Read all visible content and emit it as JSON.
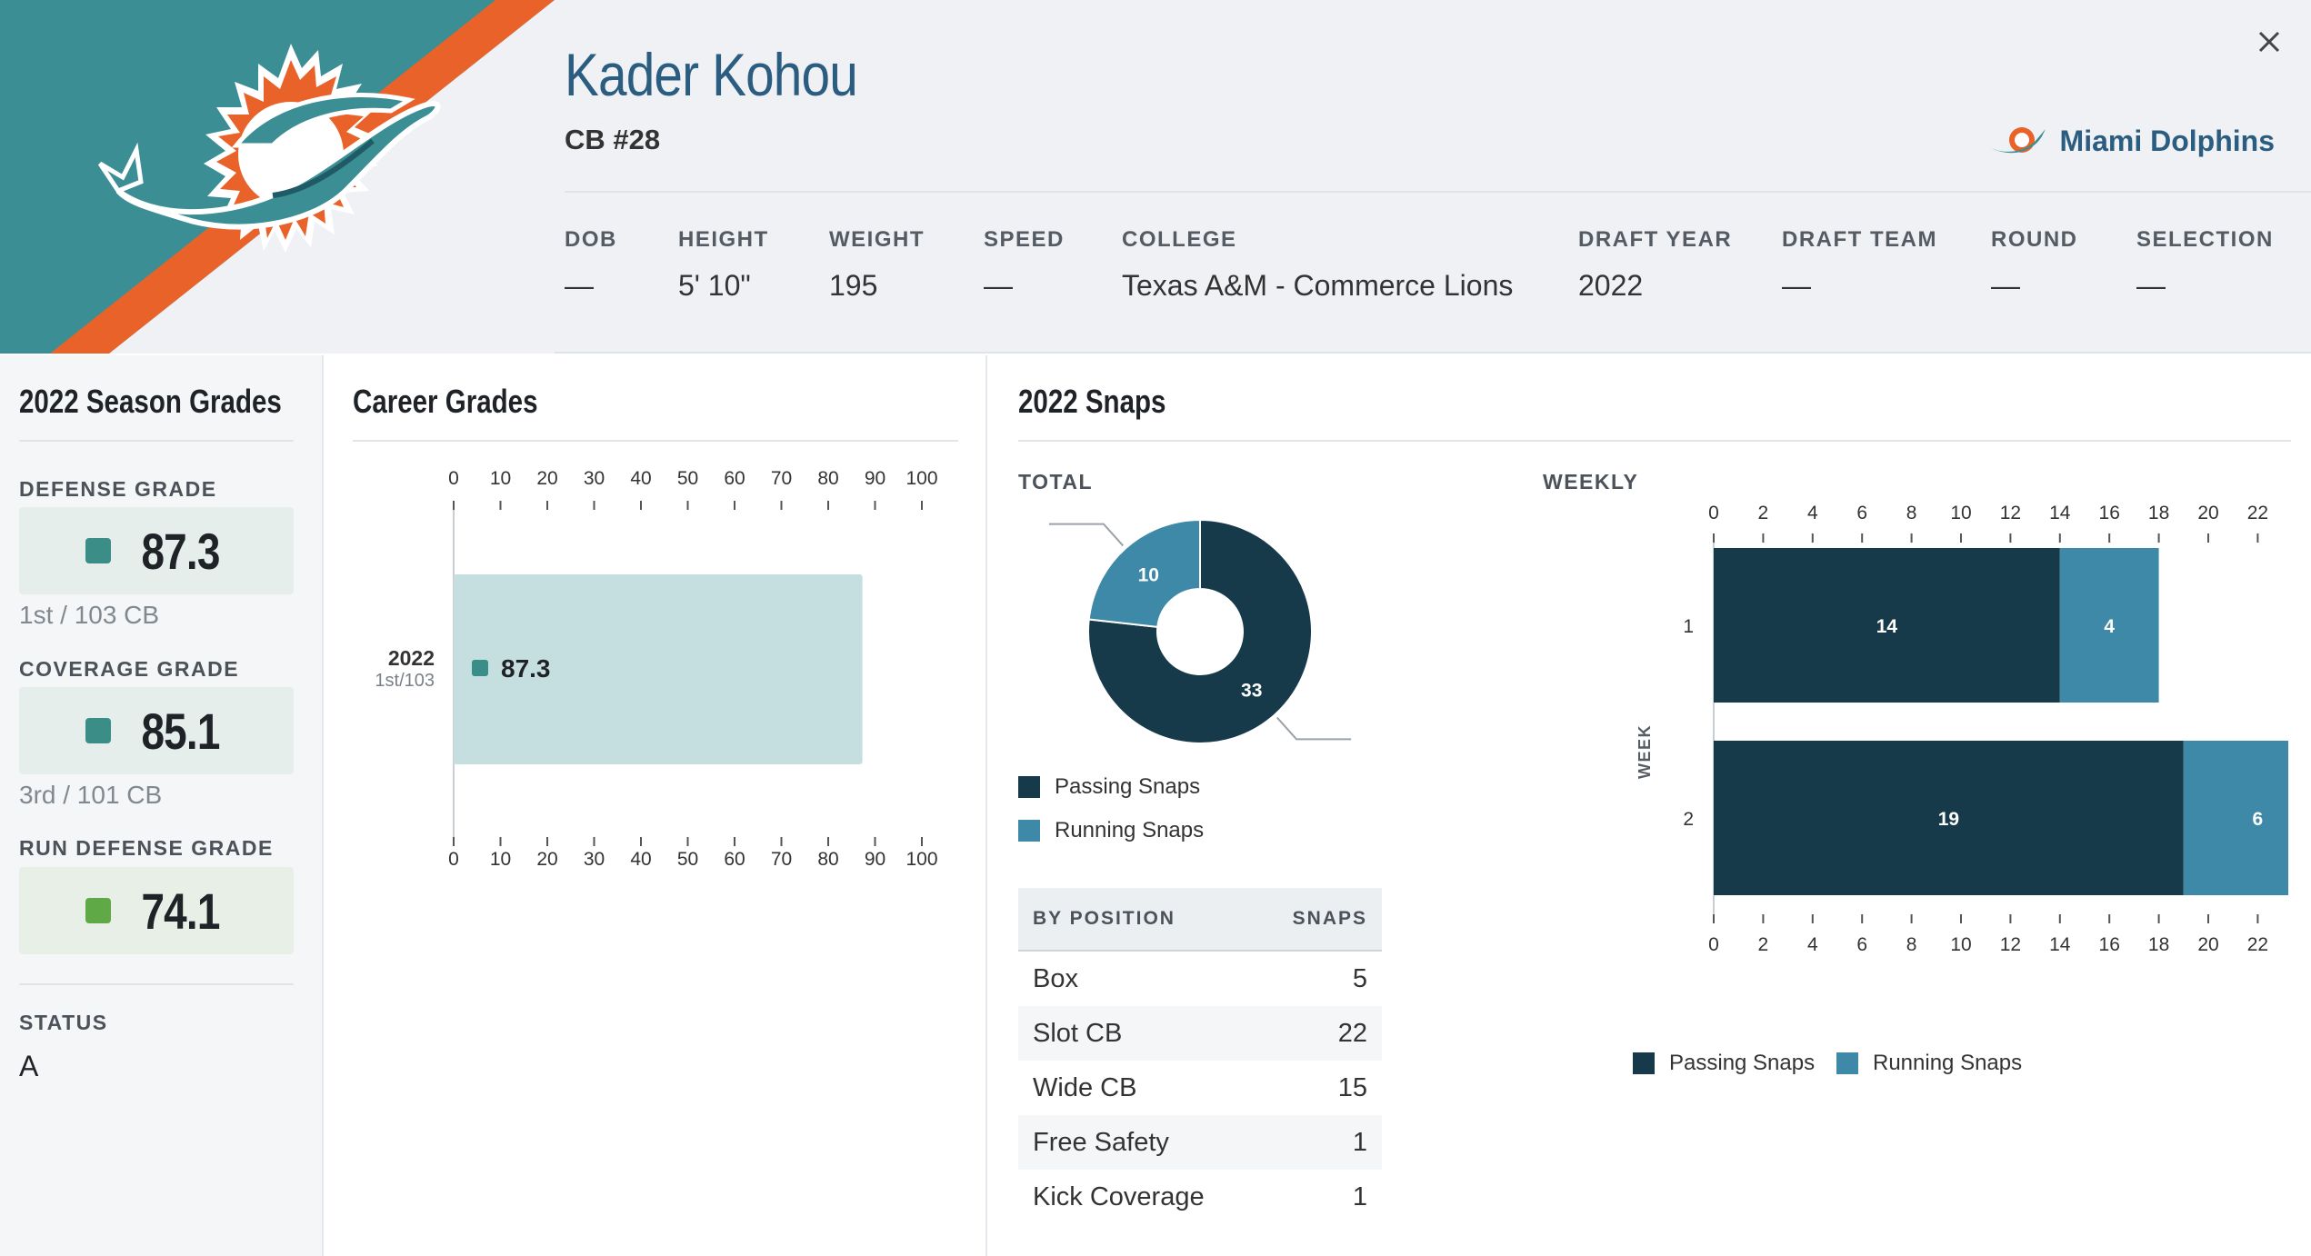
{
  "player": {
    "name": "Kader Kohou",
    "position": "CB #28",
    "team": "Miami Dolphins"
  },
  "colors": {
    "teal": "#3b8e94",
    "orange": "#e8622a",
    "navy": "#173a4a",
    "running": "#3e89a8",
    "grade_teal": "#3b8e87",
    "grade_green": "#5faa47"
  },
  "icons": {
    "close": "close-icon",
    "team_logo": "dolphins-logo-icon"
  },
  "info": [
    {
      "label": "DOB",
      "value": "—"
    },
    {
      "label": "HEIGHT",
      "value": "5' 10\""
    },
    {
      "label": "WEIGHT",
      "value": "195"
    },
    {
      "label": "SPEED",
      "value": "—"
    },
    {
      "label": "COLLEGE",
      "value": "Texas A&M - Commerce Lions"
    },
    {
      "label": "DRAFT YEAR",
      "value": "2022"
    },
    {
      "label": "DRAFT TEAM",
      "value": "—"
    },
    {
      "label": "ROUND",
      "value": "—"
    },
    {
      "label": "SELECTION",
      "value": "—"
    }
  ],
  "season": {
    "title": "2022 Season Grades",
    "grades": [
      {
        "label": "DEFENSE GRADE",
        "value": "87.3",
        "rank": "1st / 103 CB"
      },
      {
        "label": "COVERAGE GRADE",
        "value": "85.1",
        "rank": "3rd / 101 CB"
      },
      {
        "label": "RUN DEFENSE GRADE",
        "value": "74.1",
        "rank": ""
      }
    ],
    "status_label": "STATUS",
    "status_value": "A"
  },
  "career": {
    "title": "Career Grades"
  },
  "snaps": {
    "title": "2022 Snaps",
    "total_label": "TOTAL",
    "weekly_label": "WEEKLY",
    "week_axis_label": "WEEK",
    "legend": {
      "passing": "Passing Snaps",
      "running": "Running Snaps"
    },
    "table": {
      "header_position": "BY POSITION",
      "header_snaps": "SNAPS",
      "rows": [
        {
          "position": "Box",
          "snaps": "5"
        },
        {
          "position": "Slot CB",
          "snaps": "22"
        },
        {
          "position": "Wide CB",
          "snaps": "15"
        },
        {
          "position": "Free Safety",
          "snaps": "1"
        },
        {
          "position": "Kick Coverage",
          "snaps": "1"
        }
      ]
    }
  },
  "chart_data": [
    {
      "type": "bar",
      "title": "Career Grades",
      "orientation": "horizontal",
      "categories": [
        "2022"
      ],
      "category_sublabels": [
        "1st/103"
      ],
      "values": [
        87.3
      ],
      "xlim": [
        0,
        100
      ],
      "xticks": [
        0,
        10,
        20,
        30,
        40,
        50,
        60,
        70,
        80,
        90,
        100
      ]
    },
    {
      "type": "pie",
      "title": "TOTAL",
      "labels": [
        "Passing Snaps",
        "Running Snaps"
      ],
      "values": [
        33,
        10
      ]
    },
    {
      "type": "bar",
      "title": "WEEKLY",
      "orientation": "horizontal",
      "stacked": true,
      "ylabel": "WEEK",
      "categories": [
        "1",
        "2"
      ],
      "series": [
        {
          "name": "Passing Snaps",
          "values": [
            14,
            19
          ]
        },
        {
          "name": "Running Snaps",
          "values": [
            4,
            6
          ]
        }
      ],
      "xlim": [
        0,
        25
      ],
      "xticks": [
        0,
        2,
        4,
        6,
        8,
        10,
        12,
        14,
        16,
        18,
        20,
        22,
        24
      ]
    }
  ]
}
